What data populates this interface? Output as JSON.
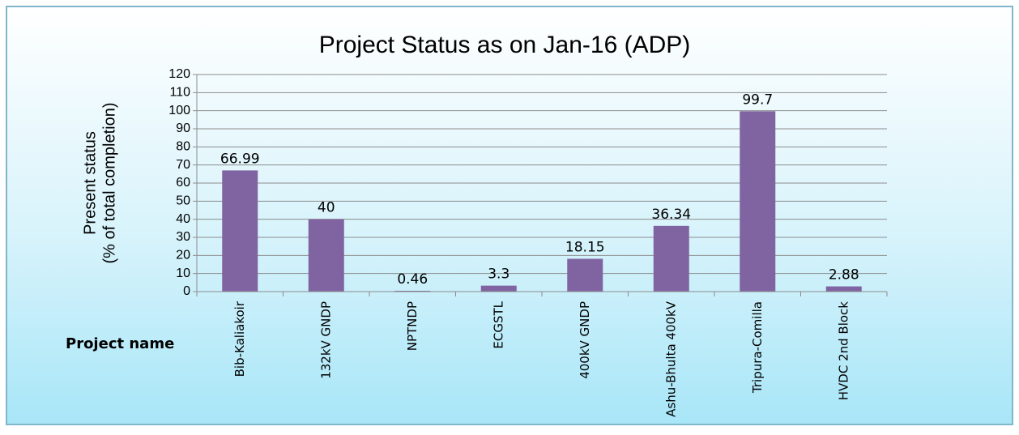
{
  "chart_data": {
    "type": "bar",
    "title": "Project  Status as on  Jan-16 (ADP)",
    "y_label": [
      "Present status",
      "(% of total completion)"
    ],
    "x_label": "Project name",
    "categories": [
      "Bib-Kaliakoir",
      "132kV GNDP",
      "NPTNDP",
      "ECGSTL",
      "400kV GNDP",
      "Ashu-Bhulta 400kV",
      "Tripura-Comilla",
      "HVDC 2nd Block"
    ],
    "values": [
      66.99,
      40,
      0.46,
      3.3,
      18.15,
      36.34,
      99.7,
      2.88
    ],
    "color": "#8064a2",
    "ylim": [
      0,
      120
    ],
    "yticks": [
      0,
      10,
      20,
      30,
      40,
      50,
      60,
      70,
      80,
      90,
      100,
      110,
      120
    ],
    "grid": true
  }
}
